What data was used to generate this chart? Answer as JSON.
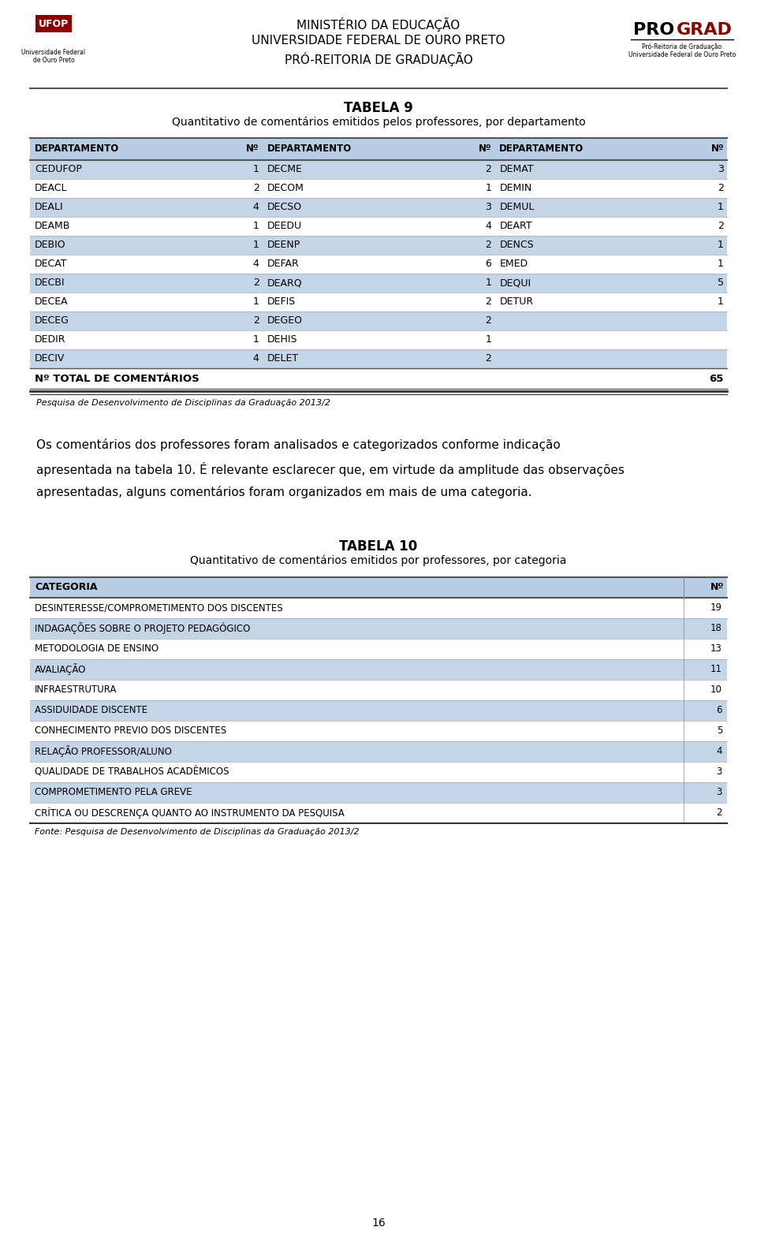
{
  "header_line1": "MINISTÉRIO DA EDUCAÇÃO",
  "header_line2": "UNIVERSIDADE FEDERAL DE OURO PRETO",
  "header_line3": "PRÓ-REITORIA DE GRADUAÇÃO",
  "table9_title": "TABELA 9",
  "table9_subtitle": "Quantitativo de comentários emitidos pelos professores, por departamento",
  "table9_col_headers": [
    "DEPARTAMENTO",
    "Nº",
    "DEPARTAMENTO",
    "Nº",
    "DEPARTAMENTO",
    "Nº"
  ],
  "table9_rows": [
    [
      "CEDUFOP",
      "1",
      "DECME",
      "2",
      "DEMAT",
      "3"
    ],
    [
      "DEACL",
      "2",
      "DECOM",
      "1",
      "DEMIN",
      "2"
    ],
    [
      "DEALI",
      "4",
      "DECSO",
      "3",
      "DEMUL",
      "1"
    ],
    [
      "DEAMB",
      "1",
      "DEEDU",
      "4",
      "DEART",
      "2"
    ],
    [
      "DEBIO",
      "1",
      "DEENP",
      "2",
      "DENCS",
      "1"
    ],
    [
      "DECAT",
      "4",
      "DEFAR",
      "6",
      "EMED",
      "1"
    ],
    [
      "DECBI",
      "2",
      "DEARQ",
      "1",
      "DEQUI",
      "5"
    ],
    [
      "DECEA",
      "1",
      "DEFIS",
      "2",
      "DETUR",
      "1"
    ],
    [
      "DECEG",
      "2",
      "DEGEO",
      "2",
      "",
      ""
    ],
    [
      "DEDIR",
      "1",
      "DEHIS",
      "1",
      "",
      ""
    ],
    [
      "DECIV",
      "4",
      "DELET",
      "2",
      "",
      ""
    ]
  ],
  "table9_total_label": "Nº TOTAL DE COMENTÁRIOS",
  "table9_total_value": "65",
  "table9_source": "Pesquisa de Desenvolvimento de Disciplinas da Graduação 2013/2",
  "body_line1": "Os comentários dos professores foram analisados e categorizados conforme indicação",
  "body_line2": "apresentada na tabela 10. É relevante esclarecer que, em virtude da amplitude das observações",
  "body_line3": "apresentadas, alguns comentários foram organizados em mais de uma categoria.",
  "table10_title": "TABELA 10",
  "table10_subtitle": "Quantitativo de comentários emitidos por professores, por categoria",
  "table10_col_headers": [
    "CATEGORIA",
    "Nº"
  ],
  "table10_rows": [
    [
      "DESINTERESSE/COMPROMETIMENTO DOS DISCENTES",
      "19"
    ],
    [
      "INDAGAÇÕES SOBRE O PROJETO PEDAGÓGICO",
      "18"
    ],
    [
      "METODOLOGIA DE ENSINO",
      "13"
    ],
    [
      "AVALIAÇÃO",
      "11"
    ],
    [
      "INFRAESTRUTURA",
      "10"
    ],
    [
      "ASSIDUIDADE DISCENTE",
      "6"
    ],
    [
      "CONHECIMENTO PREVIO DOS DISCENTES",
      "5"
    ],
    [
      "RELAÇÃO PROFESSOR/ALUNO",
      "4"
    ],
    [
      "QUALIDADE DE TRABALHOS ACADÊMICOS",
      "3"
    ],
    [
      "COMPROMETIMENTO PELA GREVE",
      "3"
    ],
    [
      "CRÍTICA OU DESCRENÇA QUANTO AO INSTRUMENTO DA PESQUISA",
      "2"
    ]
  ],
  "table10_source": "Fonte: Pesquisa de Desenvolvimento de Disciplinas da Graduação 2013/2",
  "page_number": "16",
  "bg_color": "#ffffff",
  "table_header_bg": "#b8cce4",
  "table_row_odd_bg": "#c5d5e8",
  "table_row_even_bg": "#ffffff",
  "sep_color": "#555555",
  "row_line_color": "#aaaaaa",
  "total_line_color": "#333333"
}
